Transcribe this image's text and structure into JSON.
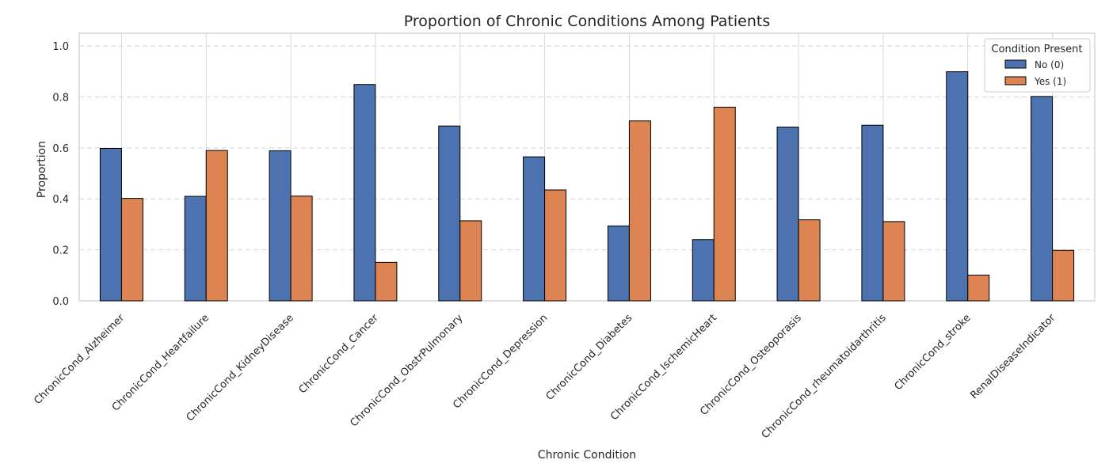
{
  "chart_data": {
    "type": "bar",
    "title": "Proportion of Chronic Conditions Among Patients",
    "xlabel": "Chronic Condition",
    "ylabel": "Proportion",
    "ylim": [
      0,
      1.05
    ],
    "yticks": [
      "0.0",
      "0.2",
      "0.4",
      "0.6",
      "0.8",
      "1.0"
    ],
    "grid": true,
    "legend": {
      "title": "Condition Present",
      "placement": "top-right"
    },
    "categories": [
      "ChronicCond_Alzheimer",
      "ChronicCond_Heartfailure",
      "ChronicCond_KidneyDisease",
      "ChronicCond_Cancer",
      "ChronicCond_ObstrPulmonary",
      "ChronicCond_Depression",
      "ChronicCond_Diabetes",
      "ChronicCond_IschemicHeart",
      "ChronicCond_Osteoporasis",
      "ChronicCond_rheumatoidarthritis",
      "ChronicCond_stroke",
      "RenalDiseaseIndicator"
    ],
    "series": [
      {
        "name": "No (0)",
        "color": "#4c72b0",
        "values": [
          0.598,
          0.41,
          0.589,
          0.849,
          0.686,
          0.565,
          0.294,
          0.24,
          0.682,
          0.689,
          0.899,
          0.802
        ]
      },
      {
        "name": "Yes (1)",
        "color": "#dd8452",
        "values": [
          0.402,
          0.59,
          0.411,
          0.151,
          0.314,
          0.435,
          0.706,
          0.76,
          0.318,
          0.311,
          0.101,
          0.198
        ]
      }
    ]
  }
}
